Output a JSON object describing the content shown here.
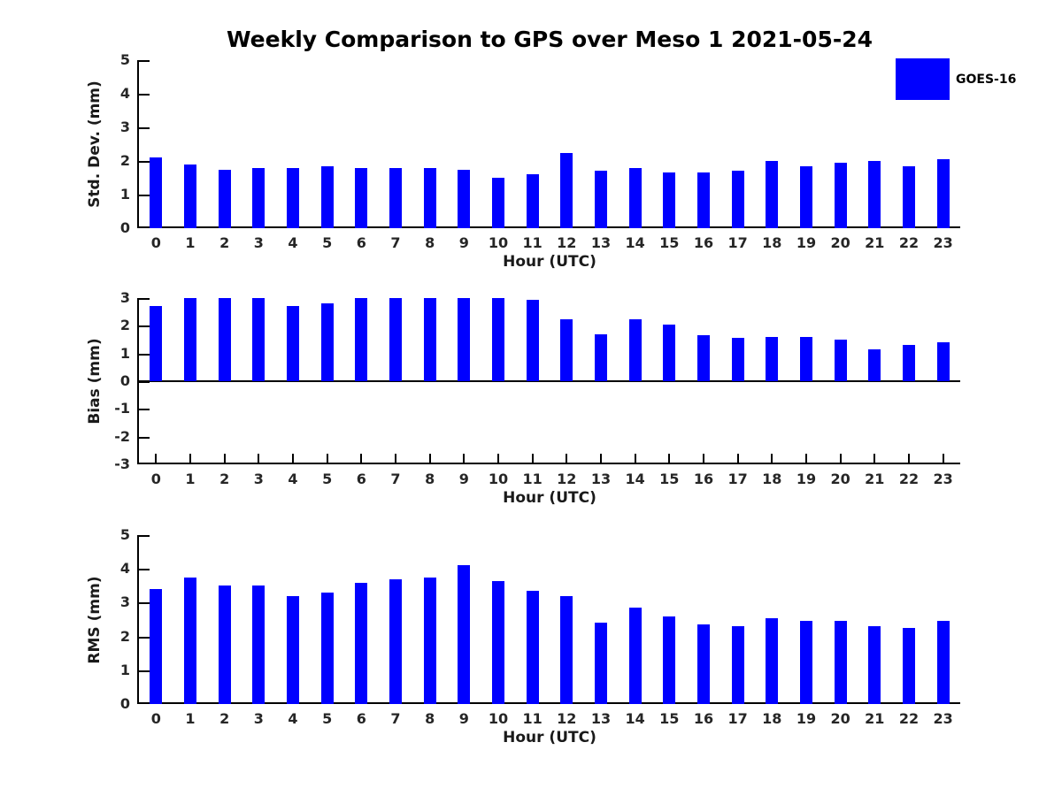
{
  "figure": {
    "title": "Weekly Comparison to GPS over Meso 1 2021-05-24",
    "background": "#ffffff",
    "legend": {
      "label": "GOES-16",
      "color": "#0000ff",
      "position": "upper-right"
    }
  },
  "chart_data": [
    {
      "type": "bar",
      "ylabel": "Std. Dev. (mm)",
      "xlabel": "Hour (UTC)",
      "categories": [
        "0",
        "1",
        "2",
        "3",
        "4",
        "5",
        "6",
        "7",
        "8",
        "9",
        "10",
        "11",
        "12",
        "13",
        "14",
        "15",
        "16",
        "17",
        "18",
        "19",
        "20",
        "21",
        "22",
        "23"
      ],
      "series": [
        {
          "name": "GOES-16",
          "values": [
            2.1,
            1.9,
            1.75,
            1.8,
            1.8,
            1.85,
            1.8,
            1.8,
            1.8,
            1.75,
            1.5,
            1.6,
            2.25,
            1.7,
            1.8,
            1.65,
            1.65,
            1.7,
            2.0,
            1.85,
            1.95,
            2.0,
            1.85,
            2.05
          ]
        }
      ],
      "ylim": [
        0,
        5
      ],
      "yticks": [
        0,
        1,
        2,
        3,
        4,
        5
      ],
      "grid": false
    },
    {
      "type": "bar",
      "ylabel": "Bias (mm)",
      "xlabel": "Hour (UTC)",
      "categories": [
        "0",
        "1",
        "2",
        "3",
        "4",
        "5",
        "6",
        "7",
        "8",
        "9",
        "10",
        "11",
        "12",
        "13",
        "14",
        "15",
        "16",
        "17",
        "18",
        "19",
        "20",
        "21",
        "22",
        "23"
      ],
      "series": [
        {
          "name": "GOES-16",
          "values": [
            2.7,
            3.0,
            3.0,
            3.0,
            2.7,
            2.8,
            3.0,
            3.0,
            3.0,
            3.0,
            3.0,
            2.95,
            2.25,
            1.7,
            2.25,
            2.05,
            1.65,
            1.55,
            1.6,
            1.6,
            1.5,
            1.15,
            1.3,
            1.4
          ]
        }
      ],
      "ylim": [
        -3,
        3
      ],
      "yticks": [
        -3,
        -2,
        -1,
        0,
        1,
        2,
        3
      ],
      "grid": false
    },
    {
      "type": "bar",
      "ylabel": "RMS (mm)",
      "xlabel": "Hour (UTC)",
      "categories": [
        "0",
        "1",
        "2",
        "3",
        "4",
        "5",
        "6",
        "7",
        "8",
        "9",
        "10",
        "11",
        "12",
        "13",
        "14",
        "15",
        "16",
        "17",
        "18",
        "19",
        "20",
        "21",
        "22",
        "23"
      ],
      "series": [
        {
          "name": "GOES-16",
          "values": [
            3.4,
            3.75,
            3.5,
            3.5,
            3.2,
            3.3,
            3.6,
            3.7,
            3.75,
            4.1,
            3.65,
            3.35,
            3.2,
            2.4,
            2.85,
            2.6,
            2.35,
            2.3,
            2.55,
            2.45,
            2.45,
            2.3,
            2.25,
            2.45
          ]
        }
      ],
      "ylim": [
        0,
        5
      ],
      "yticks": [
        0,
        1,
        2,
        3,
        4,
        5
      ],
      "grid": false
    }
  ]
}
